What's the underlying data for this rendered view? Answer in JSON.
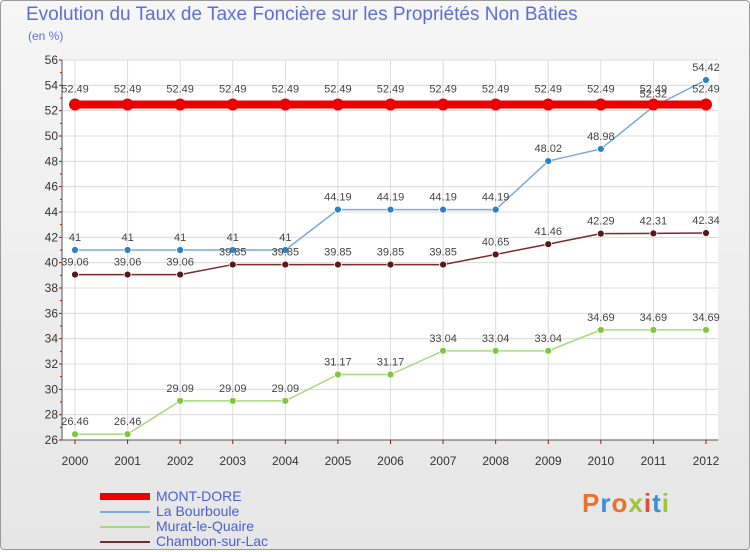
{
  "title": "Evolution du Taux de Taxe Foncière sur les Propriétés Non Bâties",
  "subtitle": "(en %)",
  "logo": {
    "text": "Proxiti",
    "colors": [
      "#e8732a",
      "#3a8fd6",
      "#e8732a",
      "#9bc53d",
      "#e84a3a",
      "#3a8fd6",
      "#9bc53d"
    ]
  },
  "chart_data": {
    "type": "line",
    "title": "Evolution du Taux de Taxe Foncière sur les Propriétés Non Bâties",
    "ylabel": "(en %)",
    "xlabel": "",
    "x": [
      "2000",
      "2001",
      "2002",
      "2003",
      "2004",
      "2005",
      "2006",
      "2007",
      "2008",
      "2009",
      "2010",
      "2011",
      "2012"
    ],
    "ylim": [
      26,
      56
    ],
    "yticks": [
      "26",
      "28",
      "30",
      "32",
      "34",
      "36",
      "38",
      "40",
      "42",
      "44",
      "46",
      "48",
      "50",
      "52",
      "54",
      "56"
    ],
    "grid": true,
    "legend_position": "bottom-left",
    "series": [
      {
        "name": "MONT-DORE",
        "color": "#ee0000",
        "values": [
          52.49,
          52.49,
          52.49,
          52.49,
          52.49,
          52.49,
          52.49,
          52.49,
          52.49,
          52.49,
          52.49,
          52.49,
          52.49
        ],
        "labels": [
          "52.49",
          "52.49",
          "52.49",
          "52.49",
          "52.49",
          "52.49",
          "52.49",
          "52.49",
          "52.49",
          "52.49",
          "52.49",
          "52.49",
          "52.49"
        ]
      },
      {
        "name": "La Bourboule",
        "color": "#7aaad8",
        "marker": "#2d82c6",
        "values": [
          41,
          41,
          41,
          41,
          41,
          44.19,
          44.19,
          44.19,
          44.19,
          48.02,
          48.98,
          52.32,
          54.42
        ],
        "labels": [
          "41",
          "41",
          "41",
          "41",
          "41",
          "44.19",
          "44.19",
          "44.19",
          "44.19",
          "48.02",
          "48.98",
          "52.32",
          "54.42"
        ]
      },
      {
        "name": "Murat-le-Quaire",
        "color": "#a5da7c",
        "marker": "#7ec83c",
        "values": [
          26.46,
          26.46,
          29.09,
          29.09,
          29.09,
          31.17,
          31.17,
          33.04,
          33.04,
          33.04,
          34.69,
          34.69,
          34.69
        ],
        "labels": [
          "26.46",
          "26.46",
          "29.09",
          "29.09",
          "29.09",
          "31.17",
          "31.17",
          "33.04",
          "33.04",
          "33.04",
          "34.69",
          "34.69",
          "34.69"
        ]
      },
      {
        "name": "Chambon-sur-Lac",
        "color": "#7a2a2a",
        "marker": "#5a1818",
        "values": [
          39.06,
          39.06,
          39.06,
          39.85,
          39.85,
          39.85,
          39.85,
          39.85,
          40.65,
          41.46,
          42.29,
          42.31,
          42.34
        ],
        "labels": [
          "39.06",
          "39.06",
          "39.06",
          "39.85",
          "39.85",
          "39.85",
          "39.85",
          "39.85",
          "40.65",
          "41.46",
          "42.29",
          "42.31",
          "42.34"
        ]
      }
    ]
  }
}
